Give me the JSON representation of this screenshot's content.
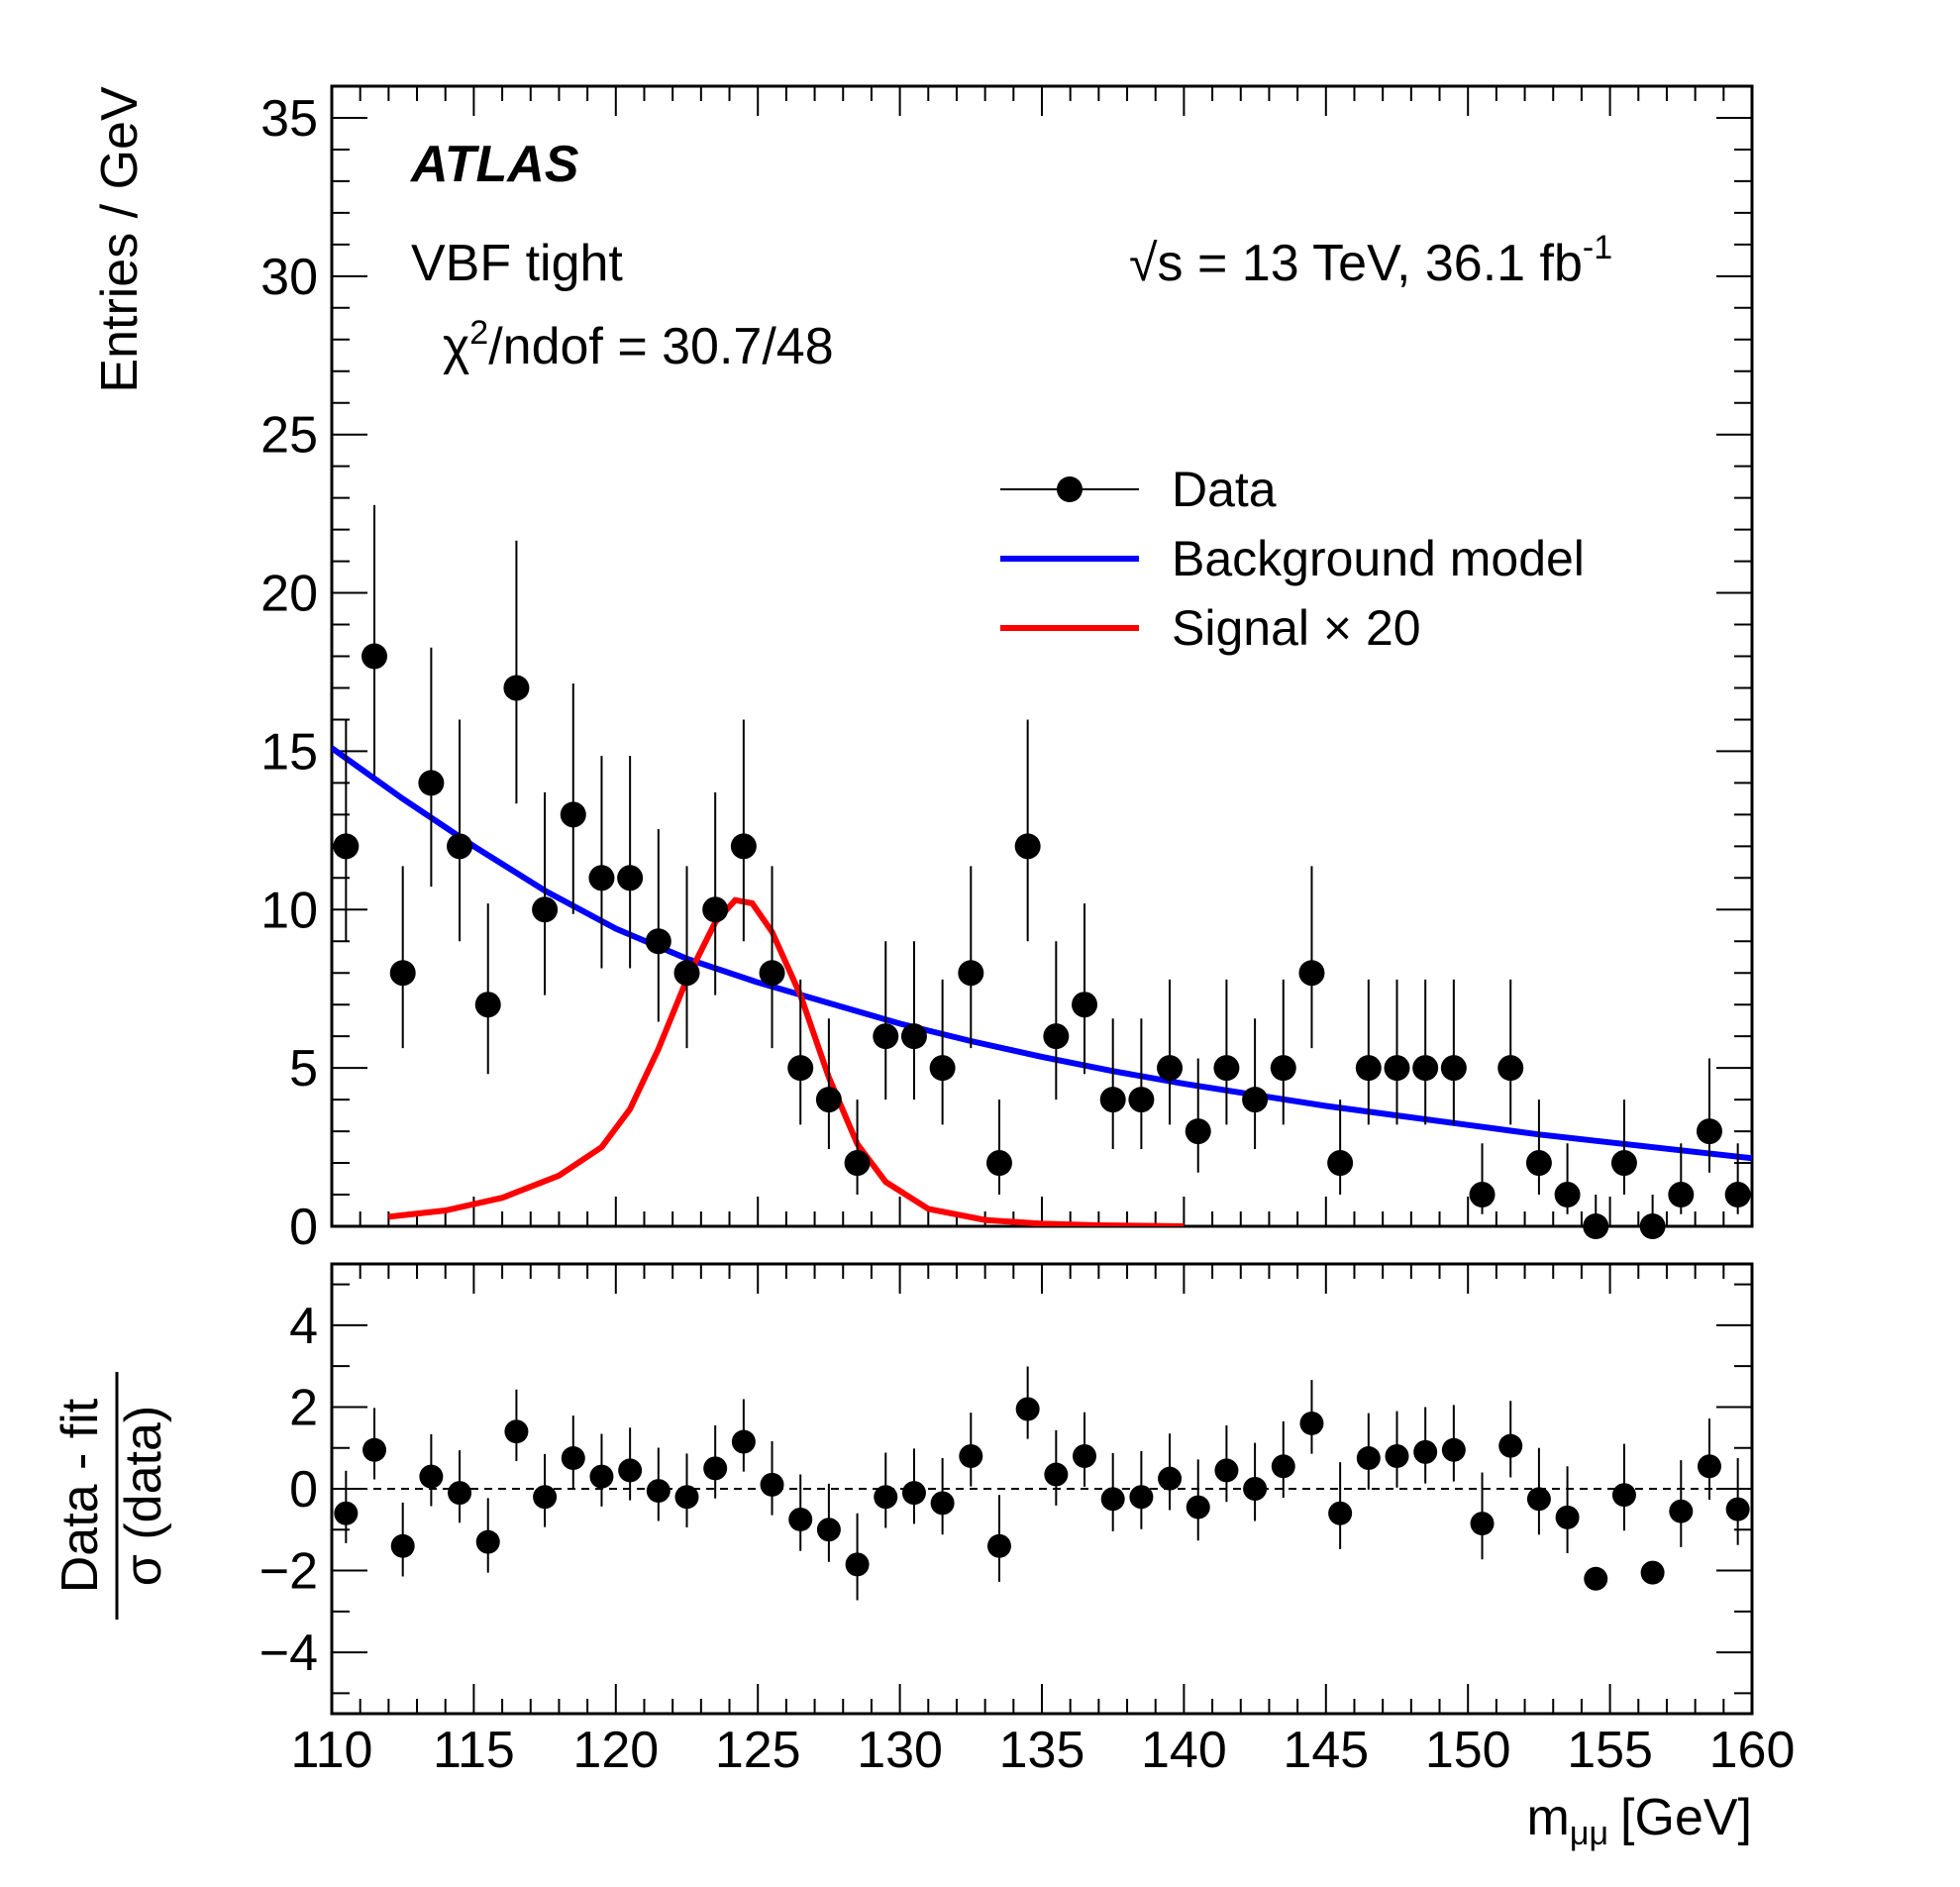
{
  "chart_data": [
    {
      "panel": "main",
      "type": "scatter",
      "xlabel_main": "m",
      "xlabel_sub": "μμ",
      "xlabel_unit": "[GeV]",
      "ylabel": "Entries / GeV",
      "xlim": [
        110,
        160
      ],
      "ylim": [
        0,
        36
      ],
      "x_ticks": [
        "110",
        "115",
        "120",
        "125",
        "130",
        "135",
        "140",
        "145",
        "150",
        "155",
        "160"
      ],
      "y_ticks": [
        "0",
        "5",
        "10",
        "15",
        "20",
        "25",
        "30",
        "35"
      ],
      "labels": {
        "experiment": "ATLAS",
        "category": "VBF tight",
        "chi2_prefix": "χ",
        "chi2_sup": "2",
        "chi2_suffix": "/ndof = 30.7/48",
        "sqrt_prefix": "√",
        "energy": "s = 13 TeV, 36.1 fb",
        "lumi_sup": "-1"
      },
      "legend": {
        "position": "top-right",
        "entries": [
          "Data",
          "Background model",
          "Signal × 20"
        ]
      },
      "colors": {
        "data": "#000000",
        "background": "#0000ff",
        "signal": "#ff0000"
      },
      "series": [
        {
          "name": "Data",
          "x": [
            110.5,
            111.5,
            112.5,
            113.5,
            114.5,
            115.5,
            116.5,
            117.5,
            118.5,
            119.5,
            120.5,
            121.5,
            122.5,
            123.5,
            124.5,
            125.5,
            126.5,
            127.5,
            128.5,
            129.5,
            130.5,
            131.5,
            132.5,
            133.5,
            134.5,
            135.5,
            136.5,
            137.5,
            138.5,
            139.5,
            140.5,
            141.5,
            142.5,
            143.5,
            144.5,
            145.5,
            146.5,
            147.5,
            148.5,
            149.5,
            150.5,
            151.5,
            152.5,
            153.5,
            154.5,
            155.5,
            156.5,
            157.5,
            158.5,
            159.5
          ],
          "y": [
            12,
            18,
            8,
            14,
            12,
            7,
            17,
            10,
            13,
            11,
            11,
            9,
            8,
            10,
            12,
            8,
            5,
            4,
            2,
            6,
            6,
            5,
            8,
            2,
            12,
            6,
            7,
            4,
            4,
            5,
            3,
            5,
            4,
            5,
            8,
            2,
            5,
            5,
            5,
            5,
            1,
            5,
            2,
            1,
            0,
            2,
            0,
            1,
            3,
            1
          ]
        },
        {
          "name": "Background model",
          "x": [
            110,
            112.5,
            115,
            117.5,
            120,
            122.5,
            125,
            127.5,
            130,
            132.5,
            135,
            137.5,
            140,
            142.5,
            145,
            147.5,
            150,
            152.5,
            155,
            157.5,
            160
          ],
          "y": [
            15.1,
            13.5,
            12.0,
            10.6,
            9.4,
            8.45,
            7.7,
            7.05,
            6.4,
            5.85,
            5.35,
            4.9,
            4.5,
            4.15,
            3.8,
            3.5,
            3.2,
            2.9,
            2.65,
            2.4,
            2.15
          ]
        },
        {
          "name": "Signal × 20",
          "x": [
            112,
            114,
            116,
            118,
            119.5,
            120.5,
            121.5,
            122.5,
            123.5,
            124.2,
            124.8,
            125.5,
            126.5,
            127.5,
            128.5,
            129.5,
            131,
            133,
            135,
            137,
            140
          ],
          "y": [
            0.3,
            0.5,
            0.9,
            1.6,
            2.5,
            3.7,
            5.6,
            7.8,
            9.6,
            10.3,
            10.2,
            9.3,
            7.3,
            4.7,
            2.6,
            1.4,
            0.55,
            0.2,
            0.08,
            0.03,
            0.0
          ]
        }
      ]
    },
    {
      "panel": "ratio",
      "type": "scatter",
      "ylabel_numerator": "Data - fit",
      "ylabel_denominator": "σ (data)",
      "xlim": [
        110,
        160
      ],
      "ylim": [
        -5.5,
        5.5
      ],
      "y_ticks": [
        "4",
        "2",
        "0",
        "−2",
        "−4"
      ],
      "reference_line": 0,
      "series": [
        {
          "name": "Pull",
          "x": [
            110.5,
            111.5,
            112.5,
            113.5,
            114.5,
            115.5,
            116.5,
            117.5,
            118.5,
            119.5,
            120.5,
            121.5,
            122.5,
            123.5,
            124.5,
            125.5,
            126.5,
            127.5,
            128.5,
            129.5,
            130.5,
            131.5,
            132.5,
            133.5,
            134.5,
            135.5,
            136.5,
            137.5,
            138.5,
            139.5,
            140.5,
            141.5,
            142.5,
            143.5,
            144.5,
            145.5,
            146.5,
            147.5,
            148.5,
            149.5,
            150.5,
            151.5,
            152.5,
            153.5,
            154.5,
            155.5,
            156.5,
            157.5,
            158.5,
            159.5
          ],
          "y": [
            -0.6,
            0.95,
            -1.4,
            0.3,
            -0.1,
            -1.3,
            1.4,
            -0.2,
            0.75,
            0.3,
            0.45,
            -0.05,
            -0.2,
            0.5,
            1.15,
            0.1,
            -0.75,
            -1.0,
            -1.85,
            -0.2,
            -0.1,
            -0.35,
            0.8,
            -1.4,
            1.95,
            0.35,
            0.8,
            -0.25,
            -0.2,
            0.25,
            -0.45,
            0.45,
            0.0,
            0.55,
            1.6,
            -0.6,
            0.75,
            0.8,
            0.9,
            0.95,
            -0.85,
            1.05,
            -0.25,
            -0.7,
            -2.2,
            -0.15,
            -2.05,
            -0.55,
            0.55,
            -0.5
          ]
        }
      ]
    }
  ]
}
